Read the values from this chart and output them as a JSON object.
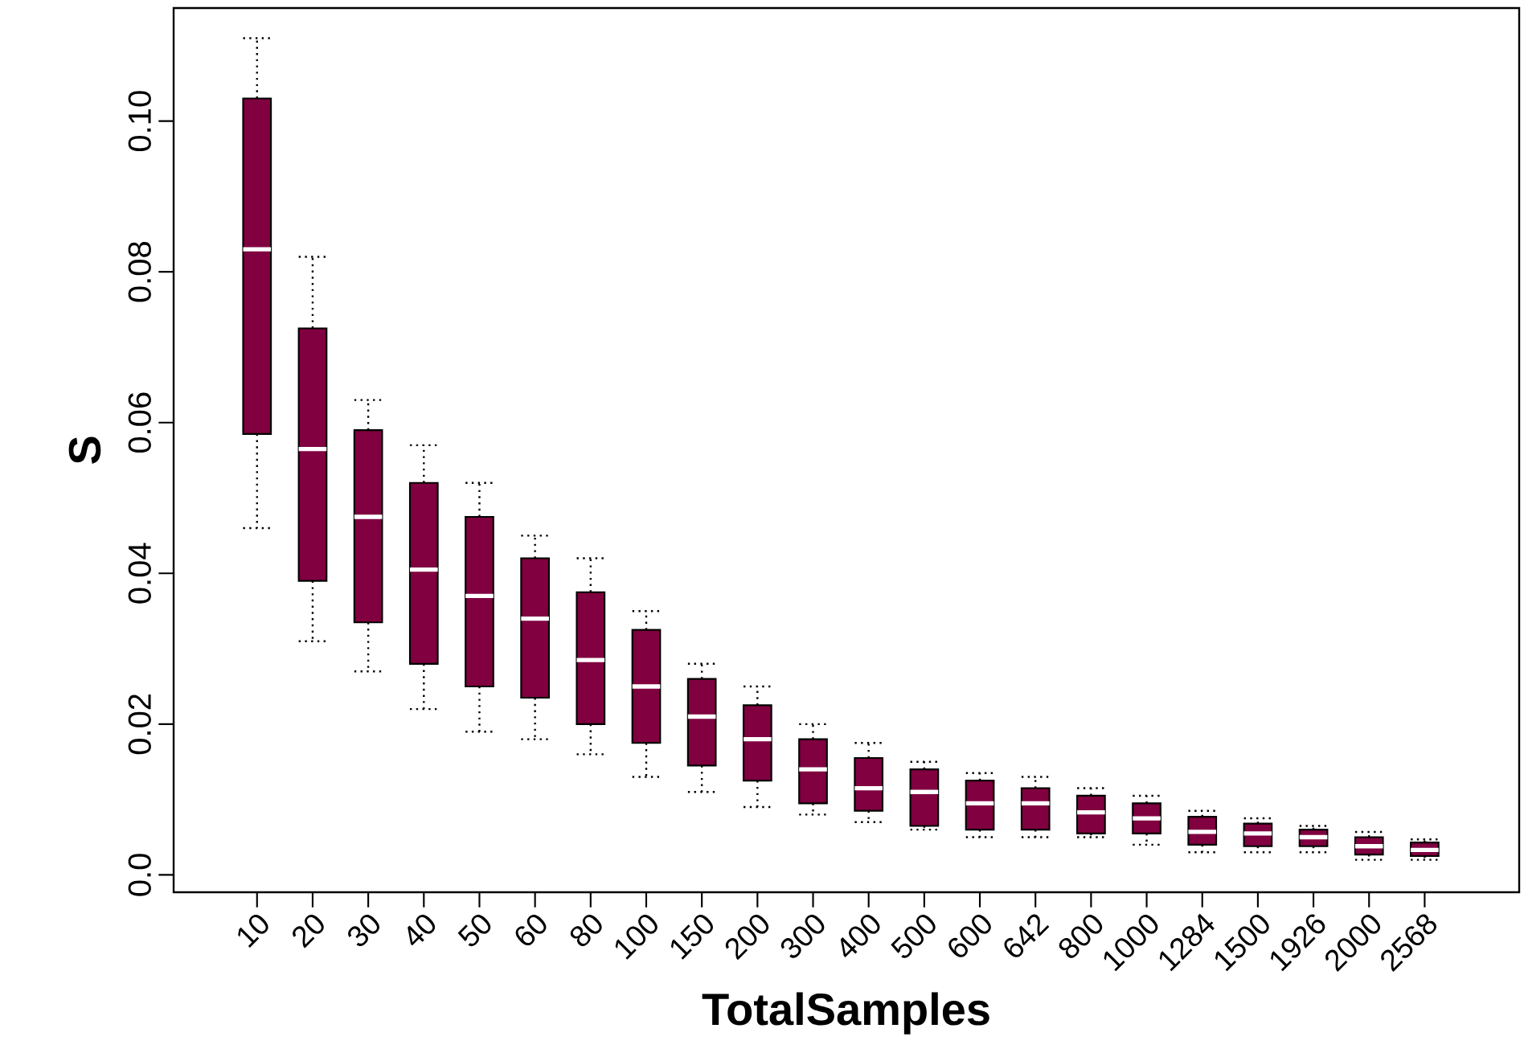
{
  "chart_data": {
    "type": "box",
    "xlabel": "TotalSamples",
    "ylabel": "S",
    "color": "#800040",
    "categories": [
      "10",
      "20",
      "30",
      "40",
      "50",
      "60",
      "80",
      "100",
      "150",
      "200",
      "300",
      "400",
      "500",
      "600",
      "642",
      "800",
      "1000",
      "1284",
      "1500",
      "1926",
      "2000",
      "2568"
    ],
    "boxes": [
      {
        "low": 0.046,
        "q1": 0.0585,
        "median": 0.083,
        "q3": 0.103,
        "high": 0.111
      },
      {
        "low": 0.031,
        "q1": 0.039,
        "median": 0.0565,
        "q3": 0.0725,
        "high": 0.082
      },
      {
        "low": 0.027,
        "q1": 0.0335,
        "median": 0.0475,
        "q3": 0.059,
        "high": 0.063
      },
      {
        "low": 0.022,
        "q1": 0.028,
        "median": 0.0405,
        "q3": 0.052,
        "high": 0.057
      },
      {
        "low": 0.019,
        "q1": 0.025,
        "median": 0.037,
        "q3": 0.0475,
        "high": 0.052
      },
      {
        "low": 0.018,
        "q1": 0.0235,
        "median": 0.034,
        "q3": 0.042,
        "high": 0.045
      },
      {
        "low": 0.016,
        "q1": 0.02,
        "median": 0.0285,
        "q3": 0.0375,
        "high": 0.042
      },
      {
        "low": 0.013,
        "q1": 0.0175,
        "median": 0.025,
        "q3": 0.0325,
        "high": 0.035
      },
      {
        "low": 0.011,
        "q1": 0.0145,
        "median": 0.021,
        "q3": 0.026,
        "high": 0.028
      },
      {
        "low": 0.009,
        "q1": 0.0125,
        "median": 0.018,
        "q3": 0.0225,
        "high": 0.025
      },
      {
        "low": 0.008,
        "q1": 0.0095,
        "median": 0.014,
        "q3": 0.018,
        "high": 0.02
      },
      {
        "low": 0.007,
        "q1": 0.0085,
        "median": 0.0115,
        "q3": 0.0155,
        "high": 0.0175
      },
      {
        "low": 0.006,
        "q1": 0.0065,
        "median": 0.011,
        "q3": 0.014,
        "high": 0.015
      },
      {
        "low": 0.005,
        "q1": 0.006,
        "median": 0.0095,
        "q3": 0.0125,
        "high": 0.0135
      },
      {
        "low": 0.005,
        "q1": 0.006,
        "median": 0.0095,
        "q3": 0.0115,
        "high": 0.013
      },
      {
        "low": 0.005,
        "q1": 0.0055,
        "median": 0.0083,
        "q3": 0.0105,
        "high": 0.0115
      },
      {
        "low": 0.004,
        "q1": 0.0055,
        "median": 0.0075,
        "q3": 0.0095,
        "high": 0.0105
      },
      {
        "low": 0.003,
        "q1": 0.004,
        "median": 0.0057,
        "q3": 0.0077,
        "high": 0.0085
      },
      {
        "low": 0.003,
        "q1": 0.0038,
        "median": 0.0055,
        "q3": 0.0068,
        "high": 0.0075
      },
      {
        "low": 0.003,
        "q1": 0.0038,
        "median": 0.005,
        "q3": 0.006,
        "high": 0.0065
      },
      {
        "low": 0.002,
        "q1": 0.0027,
        "median": 0.0038,
        "q3": 0.005,
        "high": 0.0057
      },
      {
        "low": 0.002,
        "q1": 0.0025,
        "median": 0.0033,
        "q3": 0.0043,
        "high": 0.0047
      }
    ],
    "ylim": [
      -0.0023,
      0.115
    ],
    "yticks": [
      {
        "value": 0,
        "label": "0.0"
      },
      0.02,
      0.04,
      0.06,
      0.08,
      {
        "value": 0.1,
        "label": "0.10"
      }
    ]
  }
}
